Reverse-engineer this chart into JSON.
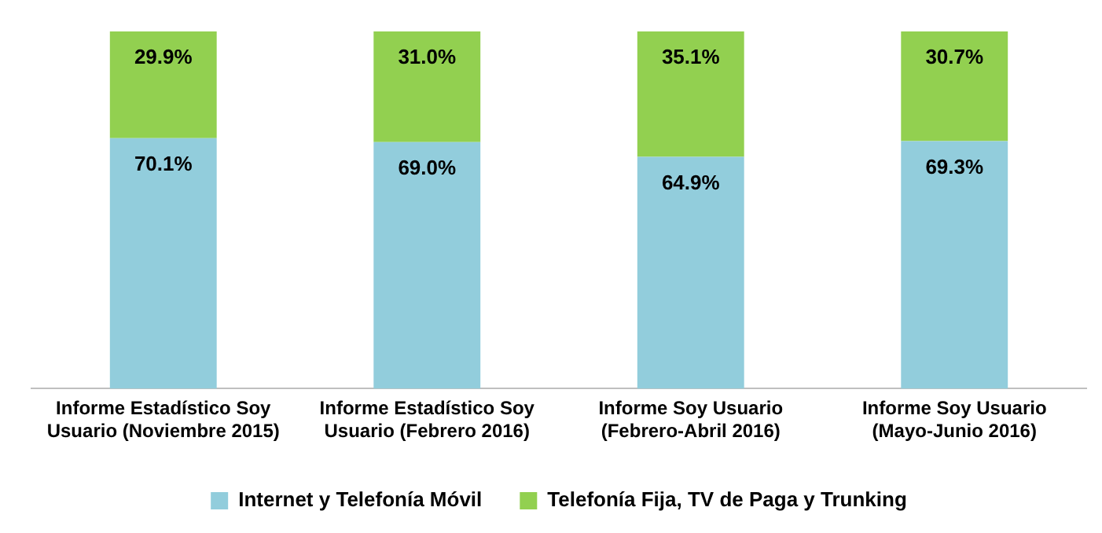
{
  "chart_data": {
    "type": "bar",
    "stacked": true,
    "categories": [
      "Informe Estadístico Soy Usuario (Noviembre 2015)",
      "Informe Estadístico Soy Usuario (Febrero 2016)",
      "Informe Soy Usuario (Febrero-Abril 2016)",
      "Informe Soy Usuario (Mayo-Junio 2016)"
    ],
    "series": [
      {
        "name": "Internet y Telefonía Móvil",
        "color": "#92cddc",
        "values": [
          70.1,
          69.0,
          64.9,
          69.3
        ],
        "value_labels": [
          "70.1%",
          "69.0%",
          "64.9%",
          "69.3%"
        ]
      },
      {
        "name": "Telefonía Fija, TV de Paga y Trunking",
        "color": "#92d050",
        "values": [
          29.9,
          31.0,
          35.1,
          30.7
        ],
        "value_labels": [
          "29.9%",
          "31.0%",
          "35.1%",
          "30.7%"
        ]
      }
    ],
    "ylim": [
      0,
      100
    ],
    "tick_labels": "x",
    "grid": false,
    "legend": "bottom"
  }
}
